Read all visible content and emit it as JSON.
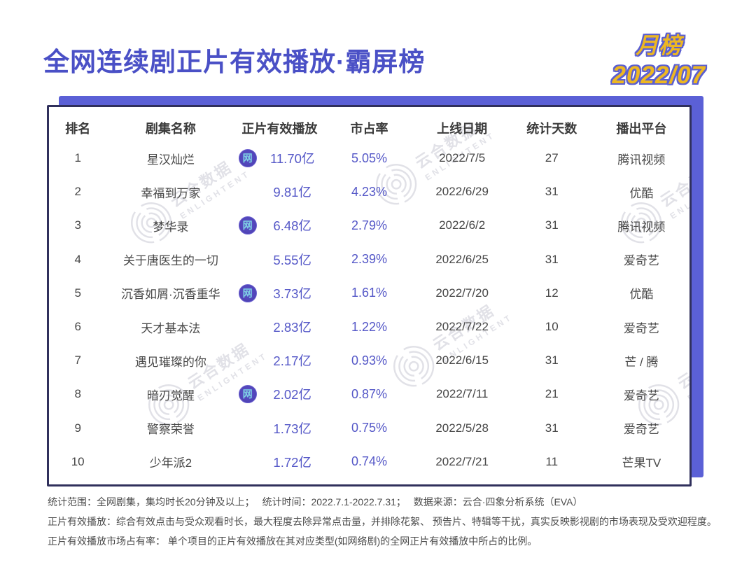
{
  "header": {
    "title": "全网连续剧正片有效播放·霸屏榜",
    "badge_period": "月榜",
    "badge_month": "2022/07"
  },
  "chart_data": {
    "type": "table",
    "title": "全网连续剧正片有效播放·霸屏榜",
    "period": "月榜 2022/07",
    "columns": [
      "排名",
      "剧集名称",
      "正片有效播放",
      "市占率",
      "上线日期",
      "统计天数",
      "播出平台"
    ],
    "rows": [
      {
        "rank": "1",
        "name": "星汉灿烂",
        "web_icon": true,
        "playback": "11.70亿",
        "playback_yi": 11.7,
        "share": "5.05%",
        "share_pct": 5.05,
        "date": "2022/7/5",
        "days": "27",
        "platform": "腾讯视频"
      },
      {
        "rank": "2",
        "name": "幸福到万家",
        "web_icon": false,
        "playback": "9.81亿",
        "playback_yi": 9.81,
        "share": "4.23%",
        "share_pct": 4.23,
        "date": "2022/6/29",
        "days": "31",
        "platform": "优酷"
      },
      {
        "rank": "3",
        "name": "梦华录",
        "web_icon": true,
        "playback": "6.48亿",
        "playback_yi": 6.48,
        "share": "2.79%",
        "share_pct": 2.79,
        "date": "2022/6/2",
        "days": "31",
        "platform": "腾讯视频"
      },
      {
        "rank": "4",
        "name": "关于唐医生的一切",
        "web_icon": false,
        "playback": "5.55亿",
        "playback_yi": 5.55,
        "share": "2.39%",
        "share_pct": 2.39,
        "date": "2022/6/25",
        "days": "31",
        "platform": "爱奇艺"
      },
      {
        "rank": "5",
        "name": "沉香如屑·沉香重华",
        "web_icon": true,
        "playback": "3.73亿",
        "playback_yi": 3.73,
        "share": "1.61%",
        "share_pct": 1.61,
        "date": "2022/7/20",
        "days": "12",
        "platform": "优酷"
      },
      {
        "rank": "6",
        "name": "天才基本法",
        "web_icon": false,
        "playback": "2.83亿",
        "playback_yi": 2.83,
        "share": "1.22%",
        "share_pct": 1.22,
        "date": "2022/7/22",
        "days": "10",
        "platform": "爱奇艺"
      },
      {
        "rank": "7",
        "name": "遇见璀璨的你",
        "web_icon": false,
        "playback": "2.17亿",
        "playback_yi": 2.17,
        "share": "0.93%",
        "share_pct": 0.93,
        "date": "2022/6/15",
        "days": "31",
        "platform": "芒 / 腾"
      },
      {
        "rank": "8",
        "name": "暗刃觉醒",
        "web_icon": true,
        "playback": "2.02亿",
        "playback_yi": 2.02,
        "share": "0.87%",
        "share_pct": 0.87,
        "date": "2022/7/11",
        "days": "21",
        "platform": "爱奇艺"
      },
      {
        "rank": "9",
        "name": "警察荣誉",
        "web_icon": false,
        "playback": "1.73亿",
        "playback_yi": 1.73,
        "share": "0.75%",
        "share_pct": 0.75,
        "date": "2022/5/28",
        "days": "31",
        "platform": "爱奇艺"
      },
      {
        "rank": "10",
        "name": "少年派2",
        "web_icon": false,
        "playback": "1.72亿",
        "playback_yi": 1.72,
        "share": "0.74%",
        "share_pct": 0.74,
        "date": "2022/7/21",
        "days": "11",
        "platform": "芒果TV"
      }
    ]
  },
  "icons": {
    "web_drama_badge": "网"
  },
  "watermark": {
    "cn": "云合数据",
    "en": "ENLIGHTENT"
  },
  "footer": {
    "line1": "统计范围：全网剧集，集均时长20分钟及以上；　 统计时间：2022.7.1-2022.7.31；　 数据来源：云合·四象分析系统（EVA）",
    "line2": "正片有效播放：综合有效点击与受众观看时长，最大程度去除异常点击量，并排除花絮、 预告片、特辑等干扰，真实反映影视剧的市场表现及受欢迎程度。",
    "line3": "正片有效播放市场占有率： 单个项目的正片有效播放在其对应类型(如网络剧)的全网正片有效播放中所占的比例。"
  },
  "colors": {
    "title": "#4a50c6",
    "accent_purple": "#5b60d6",
    "card_border": "#30305c",
    "badge_gold": "#edb722",
    "value_purple": "#5457c7",
    "text_dark": "#474747",
    "watermark_gray": "#c9cad4"
  }
}
